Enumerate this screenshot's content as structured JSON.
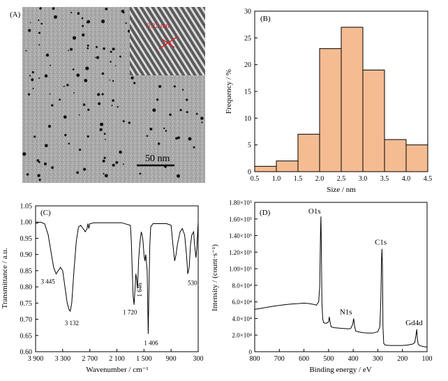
{
  "panel_a": {
    "label": "(A)",
    "inset_label": "0.22 nm",
    "scalebar_label": "50 nm"
  },
  "chart_data": [
    {
      "type": "bar",
      "panel": "(B)",
      "xlabel": "Size / nm",
      "ylabel": "Frequency / %",
      "bin_edges": [
        0.5,
        1.0,
        1.5,
        2.0,
        2.5,
        3.0,
        3.5,
        4.0,
        4.5
      ],
      "values": [
        1,
        2,
        7,
        23,
        27,
        19,
        6,
        5
      ],
      "xlim": [
        0.5,
        4.5
      ],
      "ylim": [
        0,
        30
      ],
      "xticks": [
        "0.5",
        "1.0",
        "1.5",
        "2.0",
        "2.5",
        "3.0",
        "3.5",
        "4.0",
        "4.5"
      ],
      "yticks": [
        "0",
        "5",
        "10",
        "15",
        "20",
        "25",
        "30"
      ],
      "bar_color": "#f5bc91"
    },
    {
      "type": "line",
      "panel": "(C)",
      "xlabel": "Wavenumber / cm⁻¹",
      "ylabel": "Transmittance / a.u.",
      "xlim": [
        3900,
        300
      ],
      "ylim": [
        0.6,
        1.05
      ],
      "xticks": [
        "3 900",
        "3 300",
        "2 700",
        "2 100",
        "1 500",
        "900",
        "300"
      ],
      "yticks": [
        "0.60",
        "0.65",
        "0.70",
        "0.75",
        "0.80",
        "0.85",
        "0.90",
        "0.95",
        "1.00",
        "1.05"
      ],
      "x": [
        3900,
        3800,
        3700,
        3620,
        3550,
        3500,
        3445,
        3400,
        3350,
        3300,
        3250,
        3200,
        3160,
        3132,
        3100,
        3050,
        3000,
        2950,
        2900,
        2850,
        2800,
        2760,
        2740,
        2720,
        2700,
        2600,
        2400,
        2200,
        2000,
        1800,
        1780,
        1760,
        1740,
        1720,
        1700,
        1680,
        1660,
        1646,
        1630,
        1620,
        1600,
        1580,
        1560,
        1540,
        1520,
        1500,
        1480,
        1460,
        1430,
        1406,
        1390,
        1370,
        1350,
        1300,
        1200,
        1100,
        1000,
        900,
        860,
        820,
        790,
        760,
        700,
        650,
        600,
        560,
        530,
        500,
        470,
        440,
        400,
        380,
        350,
        330,
        300
      ],
      "y": [
        0.995,
        1.0,
        0.995,
        0.96,
        0.9,
        0.86,
        0.84,
        0.85,
        0.86,
        0.85,
        0.8,
        0.75,
        0.73,
        0.725,
        0.75,
        0.85,
        0.94,
        0.985,
        0.99,
        0.98,
        0.97,
        0.98,
        0.995,
        0.98,
        0.995,
        0.998,
        0.998,
        0.998,
        0.998,
        0.99,
        0.94,
        0.85,
        0.77,
        0.745,
        0.79,
        0.84,
        0.82,
        0.795,
        0.84,
        0.88,
        0.92,
        0.95,
        0.97,
        0.96,
        0.94,
        0.9,
        0.88,
        0.9,
        0.85,
        0.655,
        0.8,
        0.93,
        0.985,
        0.995,
        0.995,
        0.995,
        0.995,
        0.99,
        0.93,
        0.88,
        0.9,
        0.93,
        0.97,
        0.98,
        0.96,
        0.9,
        0.84,
        0.86,
        0.93,
        0.96,
        0.97,
        0.93,
        0.89,
        0.92,
        1.0
      ],
      "annotations": [
        {
          "text": "3 445",
          "x": 3445,
          "y": 0.84
        },
        {
          "text": "3 132",
          "x": 3132,
          "y": 0.725
        },
        {
          "text": "1 720",
          "x": 1720,
          "y": 0.745
        },
        {
          "text": "1 646",
          "x": 1646,
          "y": 0.795
        },
        {
          "text": "1 406",
          "x": 1406,
          "y": 0.655
        },
        {
          "text": "530",
          "x": 530,
          "y": 0.84
        }
      ]
    },
    {
      "type": "line",
      "panel": "(D)",
      "xlabel": "Binding energy / eV",
      "ylabel": "Intensity / (count·s⁻¹)",
      "xlim": [
        800,
        100
      ],
      "ylim": [
        0,
        180000
      ],
      "xticks": [
        "800",
        "700",
        "600",
        "500",
        "400",
        "300",
        "200",
        "100"
      ],
      "yticks": [
        "0",
        "2.0×10⁴",
        "4.0×10⁴",
        "6.0×10⁴",
        "8.0×10⁴",
        "1.00×10⁵",
        "1.20×10⁵",
        "1.40×10⁵",
        "1.60×10⁵",
        "1.80×10⁵"
      ],
      "x": [
        800,
        760,
        720,
        680,
        650,
        620,
        600,
        580,
        560,
        550,
        545,
        540,
        536,
        533,
        531,
        529,
        527,
        524,
        520,
        510,
        500,
        497,
        494,
        490,
        480,
        460,
        440,
        420,
        410,
        402,
        398,
        394,
        390,
        380,
        360,
        340,
        320,
        300,
        292,
        288,
        285,
        283,
        281,
        279,
        276,
        270,
        250,
        220,
        200,
        180,
        170,
        160,
        150,
        145,
        142,
        139,
        136,
        130,
        120,
        110,
        100
      ],
      "y": [
        51000,
        53000,
        55000,
        56500,
        57500,
        58000,
        58500,
        58000,
        57000,
        56000,
        58000,
        60000,
        80000,
        140000,
        163000,
        120000,
        60000,
        40000,
        35000,
        34000,
        36000,
        42000,
        36000,
        30000,
        29000,
        28500,
        28000,
        27500,
        28000,
        33000,
        40000,
        30000,
        25000,
        24000,
        23000,
        22500,
        22500,
        24000,
        30000,
        60000,
        110000,
        124000,
        100000,
        30000,
        10000,
        8000,
        7500,
        7500,
        7500,
        8000,
        8500,
        9000,
        11000,
        20000,
        27000,
        15000,
        9000,
        7500,
        6500,
        6000,
        5500
      ],
      "annotations": [
        {
          "text": "O1s",
          "x": 531,
          "y": 163000
        },
        {
          "text": "N1s",
          "x": 398,
          "y": 40000
        },
        {
          "text": "C1s",
          "x": 284,
          "y": 124000
        },
        {
          "text": "Gd4d",
          "x": 142,
          "y": 27000
        }
      ]
    }
  ]
}
